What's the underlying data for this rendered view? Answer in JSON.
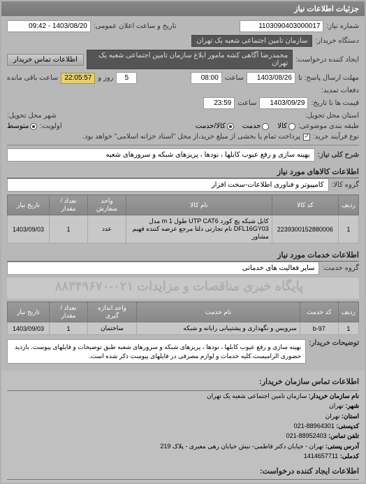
{
  "header": {
    "title": "جزئیات اطلاعات نیاز"
  },
  "form": {
    "req_no_label": "شماره نیاز:",
    "req_no": "1103090403000017",
    "announce_label": "تاریخ و ساعت اعلان عمومی:",
    "announce": "1403/08/20 - 09:42",
    "buyer_org_label": "دستگاه خریدار:",
    "buyer_org": "سازمان تامین اجتماعی شعبه یک تهران",
    "requester_label": "ایجاد کننده درخواست:",
    "requester": "محمدرضا آگاهی کشه مامور ابلاغ  سازمان تامین اجتماعی شعبه یک تهران",
    "contact_btn": "اطلاعات تماس خریدار",
    "deadline_label": "مهلت ارسال پاسخ: تا",
    "deadline_date": "1403/08/26",
    "time_label": "ساعت",
    "deadline_time": "08:00",
    "day_word": "روز و",
    "days_left": "5",
    "remain_counter": "22:05:57",
    "remain_suffix": "ساعت باقی مانده",
    "extend_label": "دفعات تمدید:",
    "price_validity_label": "قیمت ها تا تاریخ:",
    "price_validity_date": "1403/09/29",
    "price_validity_time": "23:59",
    "delivery_addr_label": "استان محل تحویل:",
    "delivery_city_label": "شهر محل تحویل:",
    "pack_label": "طبقه بندی موضوعی:",
    "pack_goods": "کالا",
    "pack_service": "خدمت",
    "pack_both": "کالا/خدمت",
    "priority_label": "اولویت:",
    "priority_side": "متوسط",
    "payment_type_label": "نوع فرآیند خرید:",
    "payment_desc": "پرداخت تمام یا بخشی از مبلغ خرید،از محل \"اسناد خزانه اسلامی\" خواهد بود.",
    "payment_chk_label": ""
  },
  "need": {
    "title_label": "شرح کلی نیاز:",
    "title": "بهینه سازی و رفع عیوب کابلها ، نودها ، پریزهای شبکه و سرورهای شعبه"
  },
  "goods": {
    "section": "اطلاعات کالاهای مورد نیاز",
    "group_label": "گروه کالا:",
    "group": "کامپیوتر و فناوری اطلاعات-سخت افزار",
    "cols": {
      "row": "ردیف",
      "code": "کد کالا",
      "name": "نام کالا",
      "unit": "واحد سفارش",
      "qty": "تعداد / مقدار",
      "date": "تاریخ نیاز"
    },
    "rows": [
      {
        "row": "1",
        "code": "2239300152880006",
        "name": "کابل شبکه پچ کورد UTP CAT6 طول 1 m مدل DFL16GY03 نام تجارتی دلتا مرجع عرضه کننده فهیم مشاور",
        "unit": "عدد",
        "qty": "1",
        "date": "1403/09/03"
      }
    ]
  },
  "services": {
    "section": "اطلاعات خدمات مورد نیاز",
    "group_label": "گروه خدمت:",
    "group": "سایر فعالیت های خدماتی",
    "watermark": "پایگاه خبری مناقصات و مزایدات  ۰۲۱-۸۸۳۴۹۶۷۰",
    "cols": {
      "row": "ردیف",
      "code": "کد خدمت",
      "name": "نام خدمت",
      "unit": "واحد اندازه گیری",
      "qty": "تعداد / مقدار",
      "date": "تاریخ نیاز"
    },
    "rows": [
      {
        "row": "1",
        "code": "b-97",
        "name": "سرویس و نگهداری و پشتیبانی رایانه و شبکه",
        "unit": "ساختمان",
        "qty": "1",
        "date": "1403/09/03"
      }
    ]
  },
  "desc": {
    "label": "توضیحات خریدار:",
    "text": "بهینه سازی و رفع عیوب کابلها ، نودها ، پریزهای شبکه و سرورهای شعبه طبق توضیحات و فایلهای پیوست. بازدید حضوری الزامیست.کلیه خدمات و لوازم مصرفی در فایلهای پیوست ذکر شده است."
  },
  "footer": {
    "section": "اطلاعات تماس سازمان خریدار:",
    "org_label": "نام سازمان خریدار:",
    "org": "سازمان تامین اجتماعی شعبه یک تهران",
    "city_label": "شهر:",
    "city": "تهران",
    "province_label": "استان:",
    "province": "تهران",
    "postal_label": "کدپستی:",
    "postal": "88964301-021",
    "phone_label": "تلفن تماس:",
    "phone": "88952403-021",
    "addr_label": "آدرس پستی:",
    "addr": "تهران - خیابان دکتر فاطمی- نبش خیابان رهی معیری - پلاک 219",
    "reqid_label": "کدملی:",
    "reqid": "1414657711",
    "creator_section": "اطلاعات ایجاد کننده درخواست:"
  }
}
